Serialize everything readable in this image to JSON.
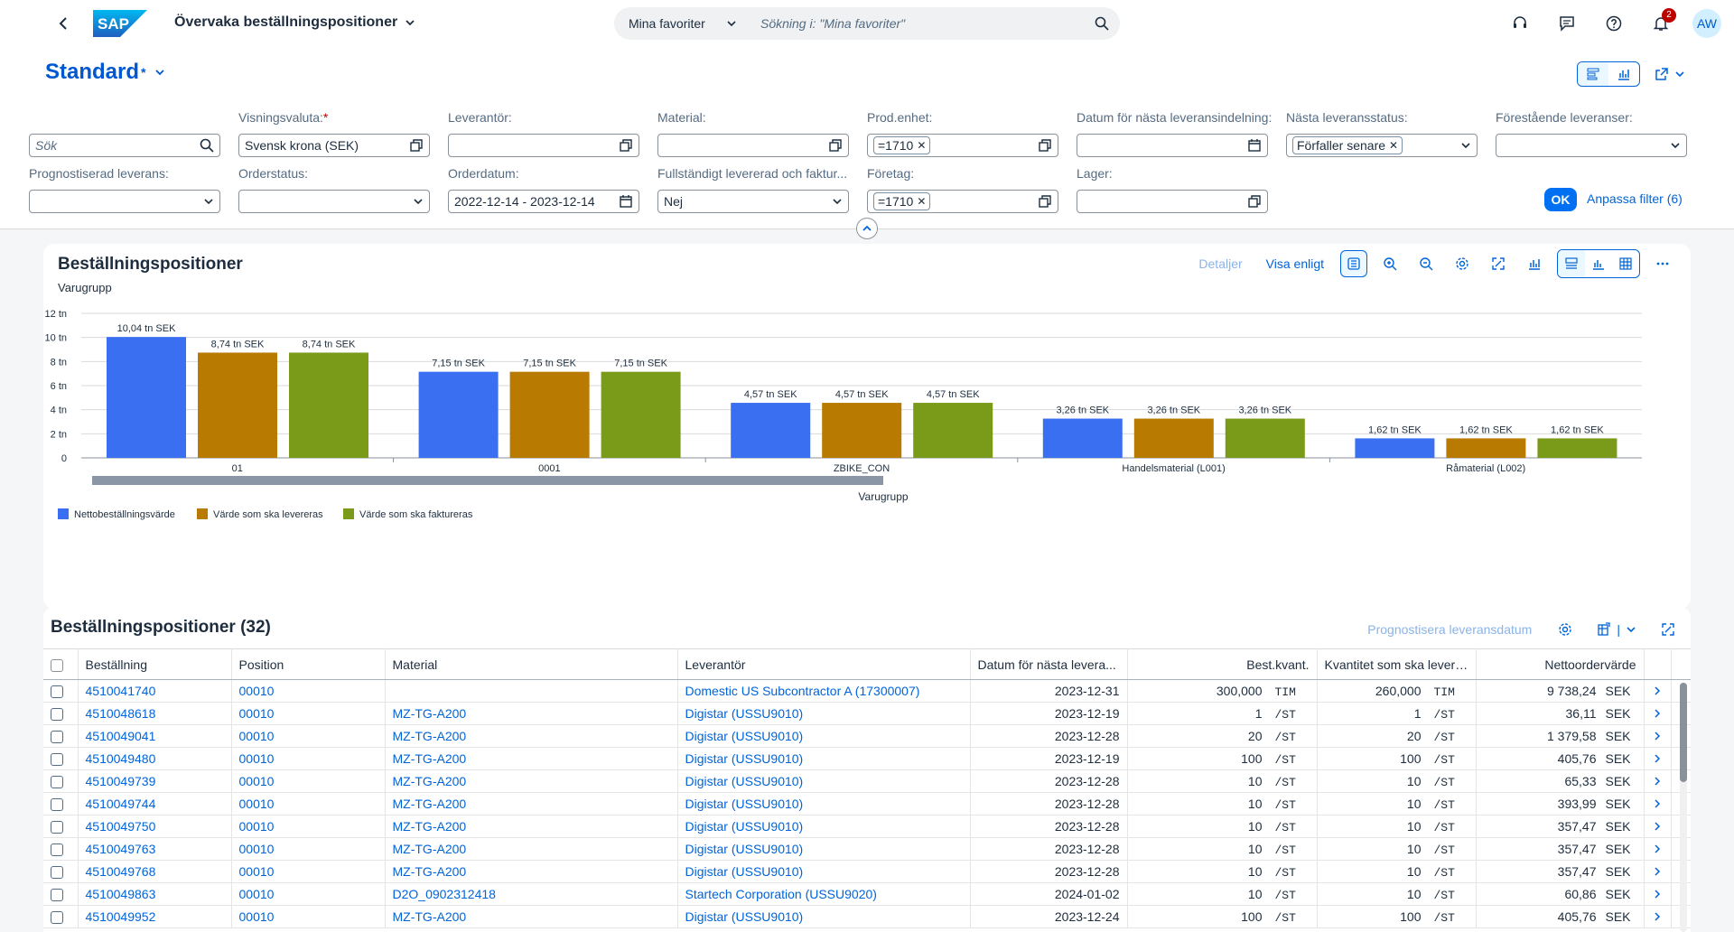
{
  "shell": {
    "app_title": "Övervaka beställningspositioner",
    "search_scope": "Mina favoriter",
    "search_placeholder": "Sökning i: \"Mina favoriter\"",
    "notification_count": "2",
    "user_initials": "AW"
  },
  "header": {
    "variant": "Standard",
    "variant_modified": "*"
  },
  "filters": {
    "search_placeholder": "Sök",
    "currency_label": "Visningsvaluta:",
    "currency_required": "*",
    "currency_value": "Svensk krona (SEK)",
    "supplier_label": "Leverantör:",
    "material_label": "Material:",
    "plant_label": "Prod.enhet:",
    "plant_token": "=1710",
    "next_delivery_date_label": "Datum för nästa leveransindelning:",
    "next_delivery_status_label": "Nästa leveransstatus:",
    "next_delivery_status_token": "Förfaller senare",
    "upcoming_label": "Förestående leveranser:",
    "forecast_label": "Prognostiserad leverans:",
    "order_status_label": "Orderstatus:",
    "order_date_label": "Orderdatum:",
    "order_date_value": "2022-12-14 - 2023-12-14",
    "fully_delivered_label": "Fullständigt levererad och faktur...",
    "fully_delivered_value": "Nej",
    "company_label": "Företag:",
    "company_token": "=1710",
    "storage_label": "Lager:",
    "go_label": "OK",
    "adapt_label": "Anpassa filter (6)"
  },
  "chart_card": {
    "title": "Beställningspositioner",
    "details_label": "Detaljer",
    "view_by_label": "Visa enligt"
  },
  "chart_data": {
    "type": "bar",
    "title": "Beställningspositioner",
    "dimension_label": "Varugrupp",
    "xlabel": "Varugrupp",
    "ylabel": "",
    "categories": [
      "01",
      "0001",
      "ZBIKE_CON",
      "Handelsmaterial (L001)",
      "Råmaterial (L002)"
    ],
    "ylim": [
      0,
      12
    ],
    "yticks": [
      "0",
      "2 tn",
      "4 tn",
      "6 tn",
      "8 tn",
      "10 tn",
      "12 tn"
    ],
    "series": [
      {
        "name": "Nettobeställningsvärde",
        "color": "#3a6ff2",
        "values": [
          10.04,
          7.15,
          4.57,
          3.26,
          1.62
        ],
        "labels": [
          "10,04 tn SEK",
          "7,15 tn SEK",
          "4,57 tn SEK",
          "3,26 tn SEK",
          "1,62 tn SEK"
        ]
      },
      {
        "name": "Värde som ska levereras",
        "color": "#b87a00",
        "values": [
          8.74,
          7.15,
          4.57,
          3.26,
          1.62
        ],
        "labels": [
          "8,74 tn SEK",
          "7,15 tn SEK",
          "4,57 tn SEK",
          "3,26 tn SEK",
          "1,62 tn SEK"
        ]
      },
      {
        "name": "Värde som ska faktureras",
        "color": "#7a9a1a",
        "values": [
          8.74,
          7.15,
          4.57,
          3.26,
          1.62
        ],
        "labels": [
          "8,74 tn SEK",
          "7,15 tn SEK",
          "4,57 tn SEK",
          "3,26 tn SEK",
          "1,62 tn SEK"
        ]
      }
    ],
    "grid": true,
    "legend": "bottom-left"
  },
  "table": {
    "title": "Beställningspositioner (32)",
    "forecast_action": "Prognostisera leveransdatum",
    "columns": [
      "Beställning",
      "Position",
      "Material",
      "Leverantör",
      "Datum för nästa levera...",
      "Best.kvant.",
      "Kvantitet som ska levereras",
      "Nettoordervärde"
    ],
    "rows": [
      {
        "order": "4510041740",
        "pos": "00010",
        "material": "",
        "supplier": "Domestic US Subcontractor A (17300007)",
        "date": "2023-12-31",
        "qty": "300,000",
        "qty_unit": "TIM",
        "deliver": "260,000",
        "deliver_unit": "TIM",
        "value": "9 738,24",
        "currency": "SEK"
      },
      {
        "order": "4510048618",
        "pos": "00010",
        "material": "MZ-TG-A200",
        "supplier": "Digistar (USSU9010)",
        "date": "2023-12-19",
        "qty": "1",
        "qty_unit": "/ST",
        "deliver": "1",
        "deliver_unit": "/ST",
        "value": "36,11",
        "currency": "SEK"
      },
      {
        "order": "4510049041",
        "pos": "00010",
        "material": "MZ-TG-A200",
        "supplier": "Digistar (USSU9010)",
        "date": "2023-12-28",
        "qty": "20",
        "qty_unit": "/ST",
        "deliver": "20",
        "deliver_unit": "/ST",
        "value": "1 379,58",
        "currency": "SEK"
      },
      {
        "order": "4510049480",
        "pos": "00010",
        "material": "MZ-TG-A200",
        "supplier": "Digistar (USSU9010)",
        "date": "2023-12-19",
        "qty": "100",
        "qty_unit": "/ST",
        "deliver": "100",
        "deliver_unit": "/ST",
        "value": "405,76",
        "currency": "SEK"
      },
      {
        "order": "4510049739",
        "pos": "00010",
        "material": "MZ-TG-A200",
        "supplier": "Digistar (USSU9010)",
        "date": "2023-12-28",
        "qty": "10",
        "qty_unit": "/ST",
        "deliver": "10",
        "deliver_unit": "/ST",
        "value": "65,33",
        "currency": "SEK"
      },
      {
        "order": "4510049744",
        "pos": "00010",
        "material": "MZ-TG-A200",
        "supplier": "Digistar (USSU9010)",
        "date": "2023-12-28",
        "qty": "10",
        "qty_unit": "/ST",
        "deliver": "10",
        "deliver_unit": "/ST",
        "value": "393,99",
        "currency": "SEK"
      },
      {
        "order": "4510049750",
        "pos": "00010",
        "material": "MZ-TG-A200",
        "supplier": "Digistar (USSU9010)",
        "date": "2023-12-28",
        "qty": "10",
        "qty_unit": "/ST",
        "deliver": "10",
        "deliver_unit": "/ST",
        "value": "357,47",
        "currency": "SEK"
      },
      {
        "order": "4510049763",
        "pos": "00010",
        "material": "MZ-TG-A200",
        "supplier": "Digistar (USSU9010)",
        "date": "2023-12-28",
        "qty": "10",
        "qty_unit": "/ST",
        "deliver": "10",
        "deliver_unit": "/ST",
        "value": "357,47",
        "currency": "SEK"
      },
      {
        "order": "4510049768",
        "pos": "00010",
        "material": "MZ-TG-A200",
        "supplier": "Digistar (USSU9010)",
        "date": "2023-12-28",
        "qty": "10",
        "qty_unit": "/ST",
        "deliver": "10",
        "deliver_unit": "/ST",
        "value": "357,47",
        "currency": "SEK"
      },
      {
        "order": "4510049863",
        "pos": "00010",
        "material": "D2O_0902312418",
        "supplier": "Startech Corporation (USSU9020)",
        "date": "2024-01-02",
        "qty": "10",
        "qty_unit": "/ST",
        "deliver": "10",
        "deliver_unit": "/ST",
        "value": "60,86",
        "currency": "SEK"
      },
      {
        "order": "4510049952",
        "pos": "00010",
        "material": "MZ-TG-A200",
        "supplier": "Digistar (USSU9010)",
        "date": "2023-12-24",
        "qty": "100",
        "qty_unit": "/ST",
        "deliver": "100",
        "deliver_unit": "/ST",
        "value": "405,76",
        "currency": "SEK"
      }
    ]
  }
}
